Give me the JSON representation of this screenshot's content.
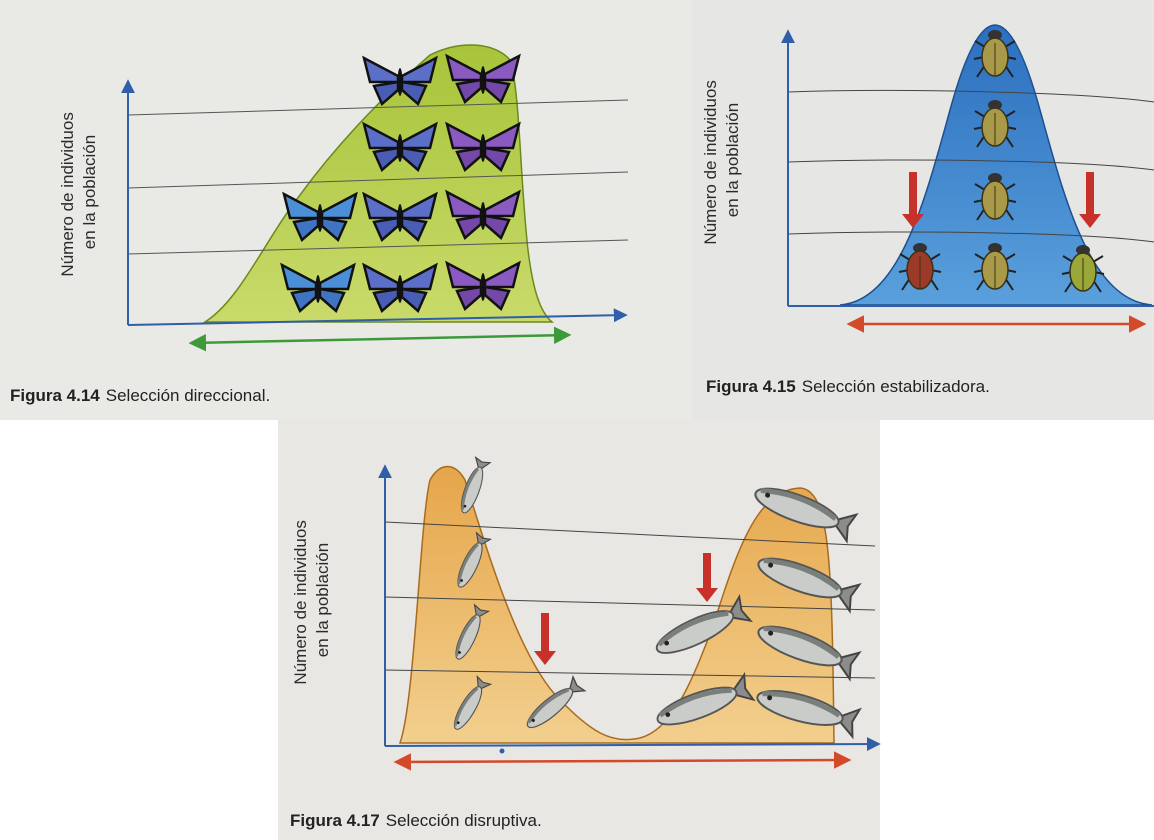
{
  "figures": [
    {
      "y_axis_label": [
        "Número de individuos",
        "en la población"
      ],
      "caption": {
        "number": "Figura 4.14",
        "text": "Selección direccional."
      }
    },
    {
      "y_axis_label": [
        "Número de individuos",
        "en la población"
      ],
      "caption": {
        "number": "Figura 4.15",
        "text": "Selección estabilizadora."
      }
    },
    {
      "y_axis_label": [
        "Número de individuos",
        "en la población"
      ],
      "caption": {
        "number": "Figura 4.17",
        "text": "Selección disruptiva."
      }
    }
  ]
}
